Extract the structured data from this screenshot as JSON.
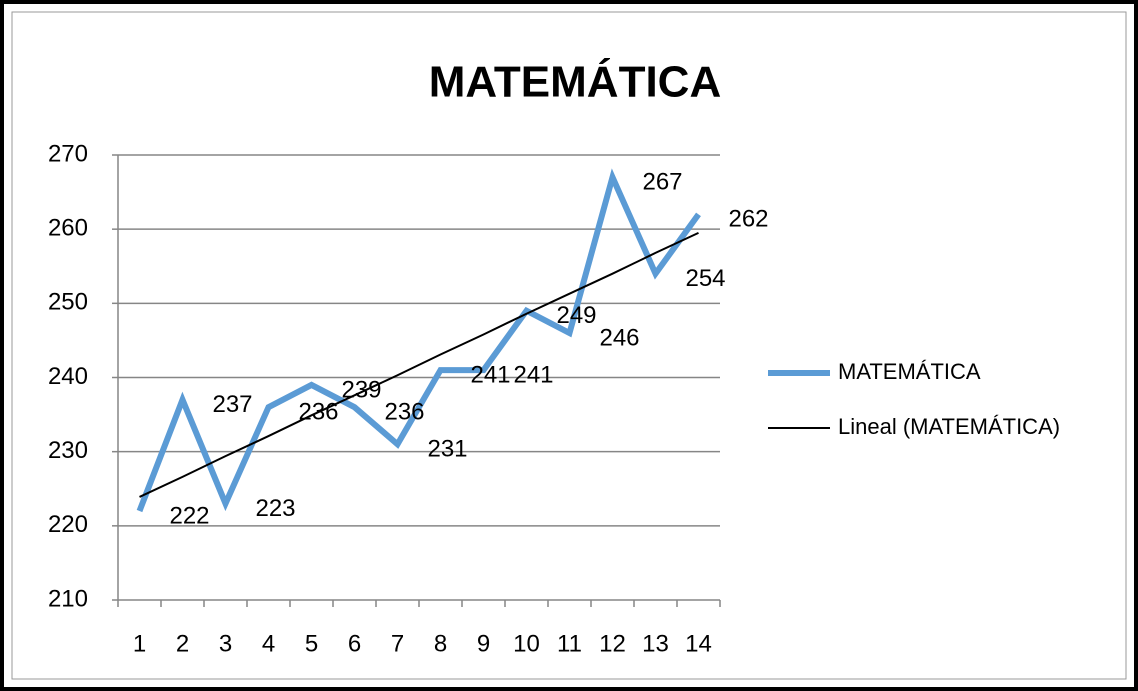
{
  "chart_data": {
    "type": "line",
    "title": "MATEMÁTICA",
    "categories": [
      "1",
      "2",
      "3",
      "4",
      "5",
      "6",
      "7",
      "8",
      "9",
      "10",
      "11",
      "12",
      "13",
      "14"
    ],
    "series": [
      {
        "name": "MATEMÁTICA",
        "color": "#5b9bd5",
        "values": [
          222,
          237,
          223,
          236,
          239,
          236,
          231,
          241,
          241,
          249,
          246,
          267,
          254,
          262
        ]
      },
      {
        "name": "Lineal (MATEMÁTICA)",
        "color": "#000000",
        "values": [
          223.9,
          226.6,
          229.4,
          232.1,
          234.9,
          237.6,
          240.3,
          243.1,
          245.8,
          248.6,
          251.3,
          254.0,
          256.8,
          259.5
        ]
      }
    ],
    "ylim": [
      210,
      270
    ],
    "yticks": [
      210,
      220,
      230,
      240,
      250,
      260,
      270
    ],
    "grid": true,
    "legend": "right"
  }
}
